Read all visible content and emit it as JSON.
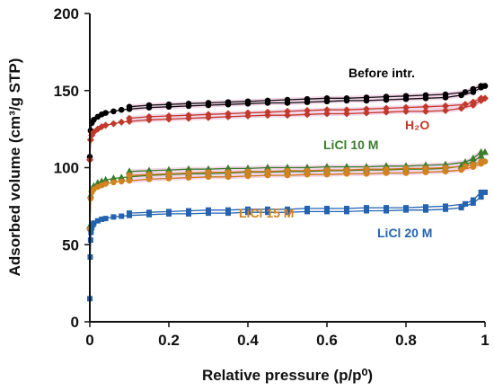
{
  "chart_data": {
    "type": "line",
    "xlabel": "Relative pressure (p/p⁰)",
    "ylabel": "Adsorbed volume (cm³/g STP)",
    "xlim": [
      0,
      1
    ],
    "ylim": [
      0,
      200
    ],
    "x_ticks": [
      "0",
      "0.2",
      "0.4",
      "0.6",
      "0.8",
      "1"
    ],
    "y_ticks": [
      "0",
      "50",
      "100",
      "150",
      "200"
    ],
    "grid": false,
    "series": [
      {
        "name": "Before intr.",
        "color": "#000000",
        "line_color": "#111111",
        "band_color": "#f3d6e8",
        "marker": "circle",
        "adsorption": [
          [
            0.0,
            107
          ],
          [
            0.002,
            124
          ],
          [
            0.005,
            129
          ],
          [
            0.01,
            131
          ],
          [
            0.02,
            133
          ],
          [
            0.03,
            134.5
          ],
          [
            0.04,
            135.5
          ],
          [
            0.06,
            136.5
          ],
          [
            0.08,
            137.5
          ],
          [
            0.1,
            138
          ],
          [
            0.15,
            139
          ],
          [
            0.2,
            139.5
          ],
          [
            0.25,
            140
          ],
          [
            0.3,
            140.5
          ],
          [
            0.35,
            141
          ],
          [
            0.4,
            141.5
          ],
          [
            0.45,
            142
          ],
          [
            0.5,
            142
          ],
          [
            0.55,
            142.5
          ],
          [
            0.6,
            143
          ],
          [
            0.65,
            143.5
          ],
          [
            0.7,
            143.5
          ],
          [
            0.75,
            144
          ],
          [
            0.8,
            144.5
          ],
          [
            0.85,
            145
          ],
          [
            0.9,
            145.5
          ],
          [
            0.94,
            147
          ],
          [
            0.97,
            149
          ],
          [
            0.99,
            152
          ],
          [
            1.0,
            153
          ]
        ],
        "desorption": [
          [
            0.99,
            153
          ],
          [
            0.97,
            151
          ],
          [
            0.95,
            149
          ],
          [
            0.9,
            147.5
          ],
          [
            0.85,
            147
          ],
          [
            0.8,
            146.5
          ],
          [
            0.75,
            146
          ],
          [
            0.7,
            145.5
          ],
          [
            0.65,
            145
          ],
          [
            0.6,
            145
          ],
          [
            0.55,
            144.5
          ],
          [
            0.5,
            144
          ],
          [
            0.45,
            143.5
          ],
          [
            0.4,
            143
          ],
          [
            0.35,
            142.5
          ],
          [
            0.3,
            142
          ],
          [
            0.25,
            141.5
          ],
          [
            0.2,
            141
          ],
          [
            0.15,
            140.5
          ],
          [
            0.1,
            139.5
          ]
        ]
      },
      {
        "name": "H₂O",
        "color": "#c0392b",
        "line_color": "#c0392b",
        "band_color": "#f3d6e8",
        "marker": "diamond",
        "adsorption": [
          [
            0.0,
            105
          ],
          [
            0.002,
            118
          ],
          [
            0.005,
            121
          ],
          [
            0.01,
            123
          ],
          [
            0.02,
            125
          ],
          [
            0.03,
            126.5
          ],
          [
            0.04,
            127.5
          ],
          [
            0.06,
            128.5
          ],
          [
            0.08,
            129.5
          ],
          [
            0.1,
            130
          ],
          [
            0.15,
            131
          ],
          [
            0.2,
            131.5
          ],
          [
            0.25,
            132
          ],
          [
            0.3,
            132.5
          ],
          [
            0.35,
            133
          ],
          [
            0.4,
            133.5
          ],
          [
            0.45,
            134
          ],
          [
            0.5,
            134
          ],
          [
            0.55,
            134.5
          ],
          [
            0.6,
            135
          ],
          [
            0.65,
            135
          ],
          [
            0.7,
            135.5
          ],
          [
            0.75,
            136
          ],
          [
            0.8,
            136.5
          ],
          [
            0.85,
            136.5
          ],
          [
            0.9,
            137
          ],
          [
            0.94,
            138.5
          ],
          [
            0.97,
            140.5
          ],
          [
            0.99,
            143.5
          ],
          [
            1.0,
            145
          ]
        ],
        "desorption": [
          [
            0.99,
            145
          ],
          [
            0.97,
            142.5
          ],
          [
            0.95,
            141
          ],
          [
            0.9,
            140
          ],
          [
            0.85,
            139.5
          ],
          [
            0.8,
            139
          ],
          [
            0.75,
            138.5
          ],
          [
            0.7,
            138
          ],
          [
            0.65,
            137.5
          ],
          [
            0.6,
            137.5
          ],
          [
            0.55,
            137
          ],
          [
            0.5,
            136.5
          ],
          [
            0.45,
            136
          ],
          [
            0.4,
            135.5
          ],
          [
            0.35,
            135
          ],
          [
            0.3,
            134.5
          ],
          [
            0.25,
            134
          ],
          [
            0.2,
            133.5
          ],
          [
            0.15,
            133
          ],
          [
            0.1,
            132
          ]
        ]
      },
      {
        "name": "LiCl 10 M",
        "color": "#3a7d2c",
        "line_color": "#3a7d2c",
        "band_color": "#f3d6e8",
        "marker": "triangle",
        "adsorption": [
          [
            0.0,
            62
          ],
          [
            0.002,
            82
          ],
          [
            0.005,
            86
          ],
          [
            0.01,
            88
          ],
          [
            0.02,
            90
          ],
          [
            0.03,
            91
          ],
          [
            0.04,
            92
          ],
          [
            0.06,
            93
          ],
          [
            0.08,
            93.5
          ],
          [
            0.1,
            94
          ],
          [
            0.15,
            95
          ],
          [
            0.2,
            95.5
          ],
          [
            0.25,
            96
          ],
          [
            0.3,
            96
          ],
          [
            0.35,
            96.5
          ],
          [
            0.4,
            97
          ],
          [
            0.45,
            97
          ],
          [
            0.5,
            97.5
          ],
          [
            0.55,
            97.5
          ],
          [
            0.6,
            98
          ],
          [
            0.65,
            98
          ],
          [
            0.7,
            98.5
          ],
          [
            0.75,
            98.5
          ],
          [
            0.8,
            99
          ],
          [
            0.85,
            99
          ],
          [
            0.9,
            99.5
          ],
          [
            0.94,
            101
          ],
          [
            0.97,
            104
          ],
          [
            0.99,
            107.5
          ],
          [
            1.0,
            110
          ]
        ],
        "desorption": [
          [
            0.99,
            110
          ],
          [
            0.97,
            106
          ],
          [
            0.95,
            103.5
          ],
          [
            0.9,
            102
          ],
          [
            0.85,
            101.5
          ],
          [
            0.8,
            101
          ],
          [
            0.75,
            101
          ],
          [
            0.7,
            100.5
          ],
          [
            0.65,
            100.5
          ],
          [
            0.6,
            100.5
          ],
          [
            0.55,
            100
          ],
          [
            0.5,
            100
          ],
          [
            0.45,
            100
          ],
          [
            0.4,
            99.5
          ],
          [
            0.35,
            99.5
          ],
          [
            0.3,
            99
          ],
          [
            0.25,
            99
          ],
          [
            0.2,
            98.5
          ],
          [
            0.15,
            98
          ],
          [
            0.1,
            97.5
          ]
        ]
      },
      {
        "name": "LiCl 15 M",
        "color": "#d4821f",
        "line_color": "#c9761a",
        "band_color": "#f3d6e8",
        "marker": "circle",
        "adsorption": [
          [
            0.0,
            60
          ],
          [
            0.002,
            80
          ],
          [
            0.005,
            84
          ],
          [
            0.01,
            86
          ],
          [
            0.02,
            87.5
          ],
          [
            0.03,
            88.5
          ],
          [
            0.04,
            89.5
          ],
          [
            0.06,
            90.5
          ],
          [
            0.08,
            91
          ],
          [
            0.1,
            91.5
          ],
          [
            0.15,
            92.5
          ],
          [
            0.2,
            93
          ],
          [
            0.25,
            93.5
          ],
          [
            0.3,
            94
          ],
          [
            0.35,
            94
          ],
          [
            0.4,
            94.5
          ],
          [
            0.45,
            95
          ],
          [
            0.5,
            95
          ],
          [
            0.55,
            95.5
          ],
          [
            0.6,
            95.5
          ],
          [
            0.65,
            96
          ],
          [
            0.7,
            96
          ],
          [
            0.75,
            96.5
          ],
          [
            0.8,
            96.5
          ],
          [
            0.85,
            97
          ],
          [
            0.9,
            97.5
          ],
          [
            0.94,
            98.5
          ],
          [
            0.97,
            100.5
          ],
          [
            0.99,
            102.5
          ],
          [
            1.0,
            104
          ]
        ],
        "desorption": [
          [
            0.99,
            104
          ],
          [
            0.97,
            102
          ],
          [
            0.95,
            101
          ],
          [
            0.9,
            100
          ],
          [
            0.85,
            99.5
          ],
          [
            0.8,
            99.5
          ],
          [
            0.75,
            99
          ],
          [
            0.7,
            99
          ],
          [
            0.65,
            98.5
          ],
          [
            0.6,
            98.5
          ],
          [
            0.55,
            98
          ],
          [
            0.5,
            98
          ],
          [
            0.45,
            97.5
          ],
          [
            0.4,
            97.5
          ],
          [
            0.35,
            97
          ],
          [
            0.3,
            97
          ],
          [
            0.25,
            96.5
          ],
          [
            0.2,
            96
          ],
          [
            0.15,
            95.5
          ],
          [
            0.1,
            95
          ]
        ]
      },
      {
        "name": "LiCl 20 M",
        "color": "#2463b0",
        "line_color": "#2463b0",
        "band_color": null,
        "marker": "square",
        "adsorption": [
          [
            0.0,
            15
          ],
          [
            0.001,
            42
          ],
          [
            0.002,
            53
          ],
          [
            0.003,
            58
          ],
          [
            0.005,
            61
          ],
          [
            0.008,
            63
          ],
          [
            0.01,
            64
          ],
          [
            0.02,
            65.5
          ],
          [
            0.03,
            66.5
          ],
          [
            0.04,
            67
          ],
          [
            0.06,
            68
          ],
          [
            0.08,
            68.5
          ],
          [
            0.1,
            69
          ],
          [
            0.15,
            69.5
          ],
          [
            0.2,
            70
          ],
          [
            0.25,
            70
          ],
          [
            0.3,
            70.5
          ],
          [
            0.35,
            70.5
          ],
          [
            0.4,
            71
          ],
          [
            0.45,
            71
          ],
          [
            0.5,
            71
          ],
          [
            0.55,
            71.5
          ],
          [
            0.6,
            71.5
          ],
          [
            0.65,
            71.5
          ],
          [
            0.7,
            72
          ],
          [
            0.75,
            72
          ],
          [
            0.8,
            72.5
          ],
          [
            0.85,
            72.5
          ],
          [
            0.9,
            73
          ],
          [
            0.94,
            74
          ],
          [
            0.97,
            77
          ],
          [
            0.99,
            81
          ],
          [
            1.0,
            84
          ]
        ],
        "desorption": [
          [
            0.99,
            84
          ],
          [
            0.97,
            79
          ],
          [
            0.95,
            76.5
          ],
          [
            0.9,
            75
          ],
          [
            0.85,
            74.5
          ],
          [
            0.8,
            74
          ],
          [
            0.75,
            74
          ],
          [
            0.7,
            74
          ],
          [
            0.65,
            73.5
          ],
          [
            0.6,
            73.5
          ],
          [
            0.55,
            73.5
          ],
          [
            0.5,
            73
          ],
          [
            0.45,
            73
          ],
          [
            0.4,
            73
          ],
          [
            0.35,
            72.5
          ],
          [
            0.3,
            72.5
          ],
          [
            0.25,
            72
          ],
          [
            0.2,
            71.5
          ],
          [
            0.15,
            71
          ],
          [
            0.1,
            70.5
          ]
        ]
      }
    ]
  }
}
